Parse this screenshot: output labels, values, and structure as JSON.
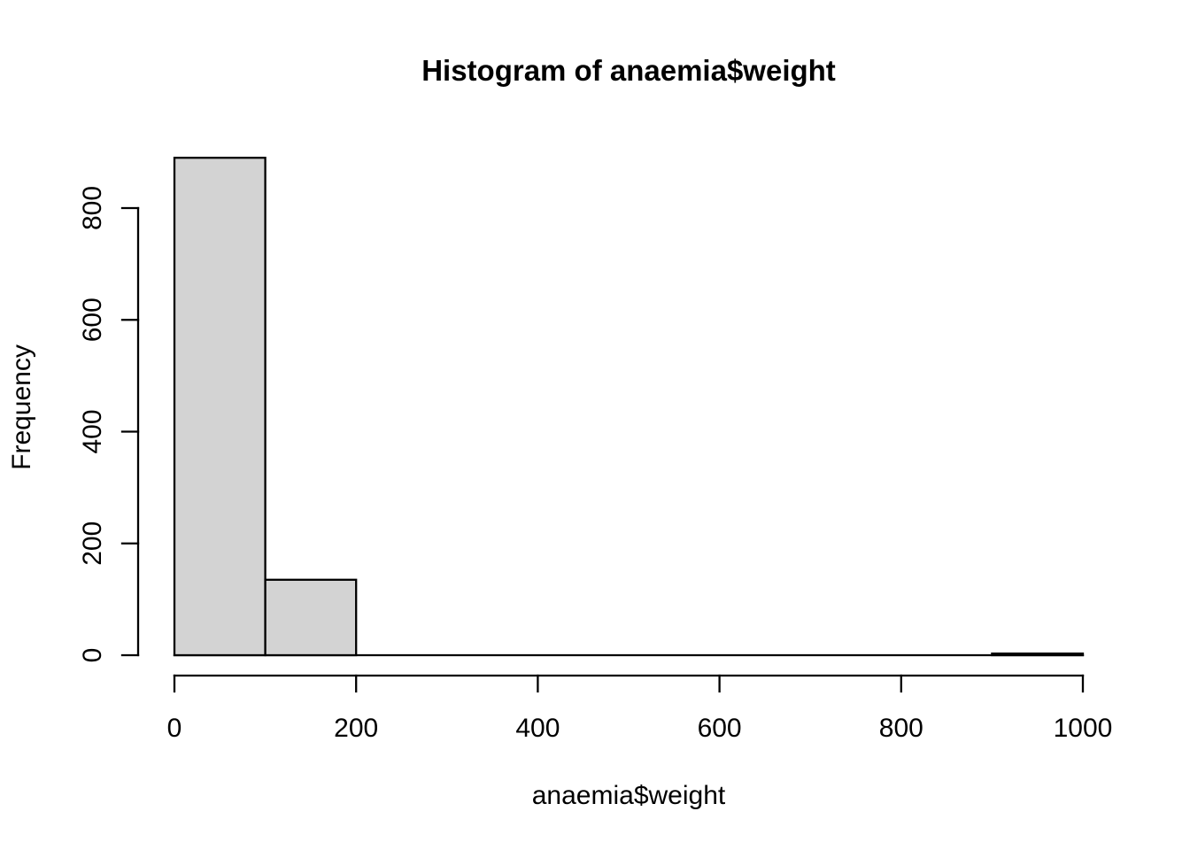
{
  "chart_data": {
    "type": "bar",
    "subtype": "histogram",
    "title": "Histogram of anaemia$weight",
    "xlabel": "anaemia$weight",
    "ylabel": "Frequency",
    "bin_edges": [
      0,
      100,
      200,
      300,
      400,
      500,
      600,
      700,
      800,
      900,
      1000
    ],
    "counts": [
      890,
      135,
      0,
      0,
      0,
      0,
      0,
      0,
      0,
      3
    ],
    "x_ticks": [
      0,
      200,
      400,
      600,
      800,
      1000
    ],
    "y_ticks": [
      0,
      200,
      400,
      600,
      800
    ],
    "x_axis_range": [
      0,
      1000
    ],
    "y_axis_range": [
      0,
      800
    ],
    "grid": false,
    "legend_position": "none",
    "colors": {
      "bar_fill": "#d3d3d3",
      "bar_stroke": "#000000",
      "axis": "#000000",
      "text": "#000000",
      "background": "#ffffff"
    }
  }
}
